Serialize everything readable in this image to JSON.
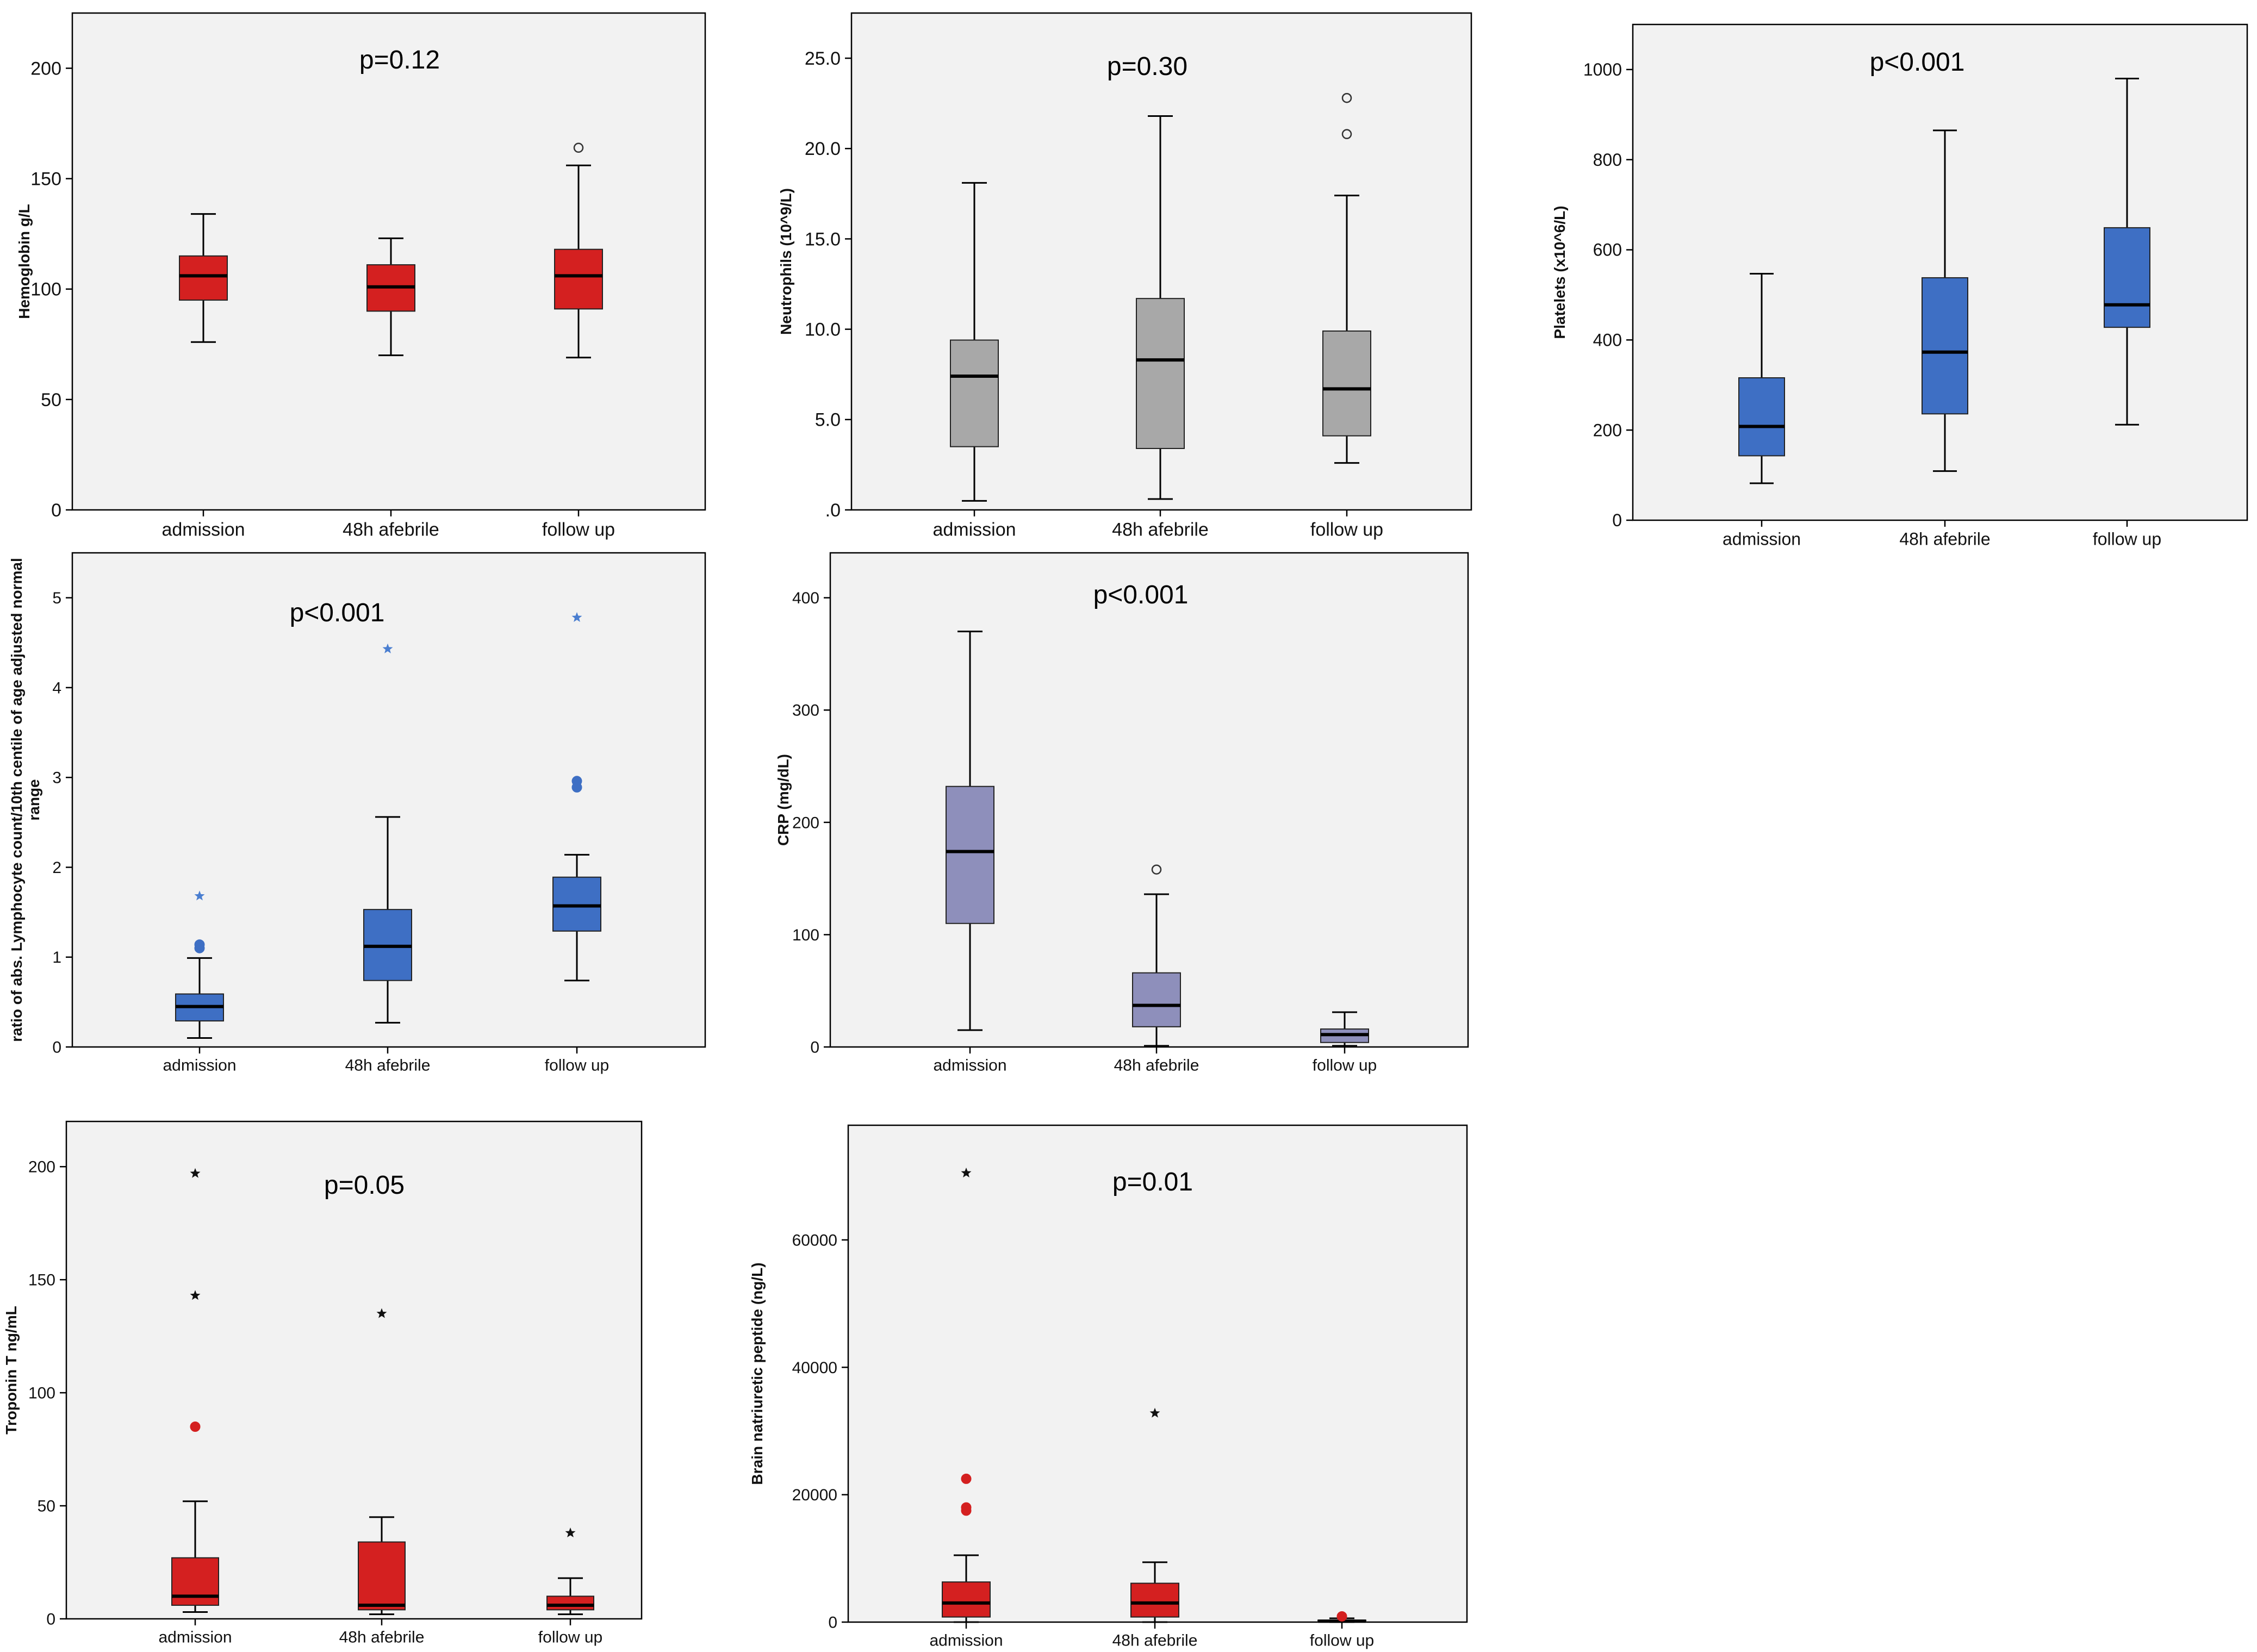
{
  "chart_data": [
    {
      "id": "hemoglobin",
      "type": "boxplot",
      "title": "p=0.12",
      "ylabel": "Hemoglobin g/L",
      "ylim": [
        0,
        225
      ],
      "yticks": [
        0,
        50,
        100,
        150,
        200
      ],
      "ytick_labels": [
        "0",
        "50",
        "100",
        "150",
        "200"
      ],
      "categories": [
        "admission",
        "48h afebrile",
        "follow up"
      ],
      "box_color": "#d42020",
      "boxes": [
        {
          "whisker_low": 76,
          "q1": 95,
          "median": 106,
          "q3": 115,
          "whisker_high": 134,
          "outliers": []
        },
        {
          "whisker_low": 70,
          "q1": 90,
          "median": 101,
          "q3": 111,
          "whisker_high": 123,
          "outliers": []
        },
        {
          "whisker_low": 69,
          "q1": 91,
          "median": 106,
          "q3": 118,
          "whisker_high": 156,
          "outliers": [
            {
              "value": 164,
              "style": "circle"
            }
          ]
        }
      ]
    },
    {
      "id": "neutrophils",
      "type": "boxplot",
      "title": "p=0.30",
      "ylabel": "Neutrophils (10^9/L)",
      "ylim": [
        0,
        27.5
      ],
      "yticks": [
        0,
        5,
        10,
        15,
        20,
        25
      ],
      "ytick_labels": [
        ".0",
        "5.0",
        "10.0",
        "15.0",
        "20.0",
        "25.0"
      ],
      "categories": [
        "admission",
        "48h afebrile",
        "follow up"
      ],
      "box_color": "#a8a8a8",
      "boxes": [
        {
          "whisker_low": 0.5,
          "q1": 3.5,
          "median": 7.4,
          "q3": 9.4,
          "whisker_high": 18.1,
          "outliers": []
        },
        {
          "whisker_low": 0.6,
          "q1": 3.4,
          "median": 8.3,
          "q3": 11.7,
          "whisker_high": 21.8,
          "outliers": []
        },
        {
          "whisker_low": 2.6,
          "q1": 4.1,
          "median": 6.7,
          "q3": 9.9,
          "whisker_high": 17.4,
          "outliers": [
            {
              "value": 20.8,
              "style": "circle"
            },
            {
              "value": 22.8,
              "style": "circle"
            }
          ]
        }
      ]
    },
    {
      "id": "platelets",
      "type": "boxplot",
      "title": "p<0.001",
      "ylabel": "Platelets (x10^6/L)",
      "ylim": [
        0,
        1100
      ],
      "yticks": [
        0,
        200,
        400,
        600,
        800,
        1000
      ],
      "ytick_labels": [
        "0",
        "200",
        "400",
        "600",
        "800",
        "1000"
      ],
      "categories": [
        "admission",
        "48h afebrile",
        "follow up"
      ],
      "box_color": "#3e6fc4",
      "boxes": [
        {
          "whisker_low": 82,
          "q1": 143,
          "median": 208,
          "q3": 316,
          "whisker_high": 547,
          "outliers": []
        },
        {
          "whisker_low": 109,
          "q1": 236,
          "median": 373,
          "q3": 538,
          "whisker_high": 865,
          "outliers": []
        },
        {
          "whisker_low": 212,
          "q1": 428,
          "median": 478,
          "q3": 649,
          "whisker_high": 980,
          "outliers": []
        }
      ]
    },
    {
      "id": "lymphocyte-ratio",
      "type": "boxplot",
      "title": "p<0.001",
      "ylabel": "ratio of abs. Lymphocyte count/10th centile of age adjusted normal range",
      "ylabel_lines": [
        "ratio of abs. Lymphocyte count/10th centile of age adjusted normal",
        "range"
      ],
      "ylim": [
        0,
        5.5
      ],
      "yticks": [
        0,
        1,
        2,
        3,
        4,
        5
      ],
      "ytick_labels": [
        "0",
        "1",
        "2",
        "3",
        "4",
        "5"
      ],
      "categories": [
        "admission",
        "48h afebrile",
        "follow up"
      ],
      "box_color": "#3e6fc4",
      "boxes": [
        {
          "whisker_low": 0.1,
          "q1": 0.29,
          "median": 0.45,
          "q3": 0.59,
          "whisker_high": 0.99,
          "outliers": [
            {
              "value": 1.1,
              "style": "dot"
            },
            {
              "value": 1.14,
              "style": "dot"
            },
            {
              "value": 1.68,
              "style": "star"
            }
          ]
        },
        {
          "whisker_low": 0.27,
          "q1": 0.74,
          "median": 1.12,
          "q3": 1.53,
          "whisker_high": 2.56,
          "outliers": [
            {
              "value": 4.43,
              "style": "star"
            }
          ]
        },
        {
          "whisker_low": 0.74,
          "q1": 1.29,
          "median": 1.57,
          "q3": 1.89,
          "whisker_high": 2.14,
          "outliers": [
            {
              "value": 2.89,
              "style": "dot"
            },
            {
              "value": 2.96,
              "style": "dot"
            },
            {
              "value": 4.78,
              "style": "star"
            }
          ]
        }
      ]
    },
    {
      "id": "crp",
      "type": "boxplot",
      "title": "p<0.001",
      "ylabel": "CRP (mg/dL)",
      "ylim": [
        0,
        440
      ],
      "yticks": [
        0,
        100,
        200,
        300,
        400
      ],
      "ytick_labels": [
        "0",
        "100",
        "200",
        "300",
        "400"
      ],
      "categories": [
        "admission",
        "48h afebrile",
        "follow up"
      ],
      "box_color": "#8e8fbb",
      "boxes": [
        {
          "whisker_low": 15,
          "q1": 110,
          "median": 174,
          "q3": 232,
          "whisker_high": 370,
          "outliers": []
        },
        {
          "whisker_low": 1,
          "q1": 18,
          "median": 37,
          "q3": 66,
          "whisker_high": 136,
          "outliers": [
            {
              "value": 158,
              "style": "circle"
            }
          ]
        },
        {
          "whisker_low": 1,
          "q1": 4,
          "median": 11,
          "q3": 16,
          "whisker_high": 31,
          "outliers": []
        }
      ]
    },
    {
      "id": "troponin",
      "type": "boxplot",
      "title": "p=0.05",
      "ylabel": "Troponin T ng/mL",
      "ylim": [
        0,
        220
      ],
      "yticks": [
        0,
        50,
        100,
        150,
        200
      ],
      "ytick_labels": [
        "0",
        "50",
        "100",
        "150",
        "200"
      ],
      "categories": [
        "admission",
        "48h afebrile",
        "follow up"
      ],
      "box_color": "#d42020",
      "boxes": [
        {
          "whisker_low": 3,
          "q1": 6,
          "median": 10,
          "q3": 27,
          "whisker_high": 52,
          "outliers": [
            {
              "value": 85,
              "style": "dot"
            },
            {
              "value": 143,
              "style": "star"
            },
            {
              "value": 197,
              "style": "star"
            }
          ]
        },
        {
          "whisker_low": 2,
          "q1": 4,
          "median": 6,
          "q3": 34,
          "whisker_high": 45,
          "outliers": [
            {
              "value": 135,
              "style": "star"
            }
          ]
        },
        {
          "whisker_low": 2,
          "q1": 4,
          "median": 6,
          "q3": 10,
          "whisker_high": 18,
          "outliers": [
            {
              "value": 38,
              "style": "star"
            }
          ]
        }
      ]
    },
    {
      "id": "bnp",
      "type": "boxplot",
      "title": "p=0.01",
      "ylabel": "Brain natriuretic peptide (ng/L)",
      "ylim": [
        0,
        78000
      ],
      "yticks": [
        0,
        20000,
        40000,
        60000
      ],
      "ytick_labels": [
        "0",
        "20000",
        "40000",
        "60000"
      ],
      "categories": [
        "admission",
        "48h afebrile",
        "follow up"
      ],
      "box_color": "#d42020",
      "boxes": [
        {
          "whisker_low": 0,
          "q1": 800,
          "median": 3000,
          "q3": 6300,
          "whisker_high": 10500,
          "outliers": [
            {
              "value": 17500,
              "style": "dot"
            },
            {
              "value": 18000,
              "style": "dot"
            },
            {
              "value": 22500,
              "style": "dot"
            },
            {
              "value": 70500,
              "style": "star"
            }
          ]
        },
        {
          "whisker_low": 0,
          "q1": 800,
          "median": 3000,
          "q3": 6100,
          "whisker_high": 9400,
          "outliers": [
            {
              "value": 32800,
              "style": "star"
            }
          ]
        },
        {
          "whisker_low": 0,
          "q1": 50,
          "median": 150,
          "q3": 300,
          "whisker_high": 600,
          "outliers": [
            {
              "value": 900,
              "style": "dot"
            }
          ]
        }
      ]
    }
  ]
}
